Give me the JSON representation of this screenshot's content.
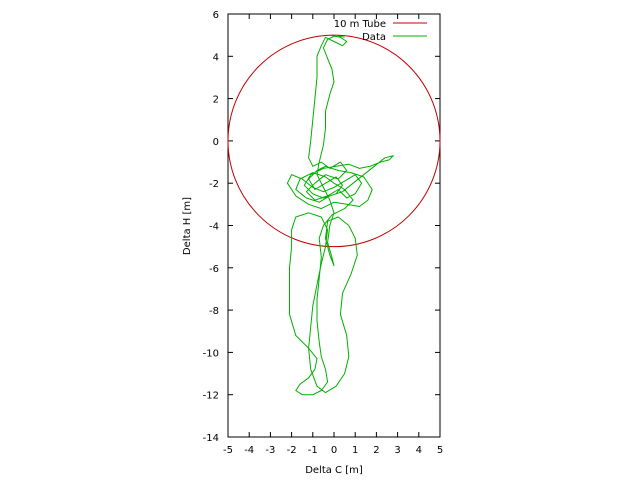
{
  "chart_data": {
    "type": "line",
    "title": "",
    "xlabel": "Delta C [m]",
    "ylabel": "Delta H [m]",
    "xlim": [
      -5,
      5
    ],
    "ylim": [
      -14,
      6
    ],
    "x_ticks": [
      "-5",
      "-4",
      "-3",
      "-2",
      "-1",
      "0",
      "1",
      "2",
      "3",
      "4",
      "5"
    ],
    "y_ticks": [
      "6",
      "4",
      "2",
      "0",
      "-2",
      "-4",
      "-6",
      "-8",
      "-10",
      "-12",
      "-14"
    ],
    "grid": false,
    "legend": {
      "placement": "top-right"
    },
    "series": [
      {
        "name": "10 m Tube",
        "color": "#c00000",
        "kind": "circle",
        "center": [
          0,
          0
        ],
        "radius": 5
      },
      {
        "name": "Data",
        "color": "#00b000",
        "kind": "path",
        "points": [
          [
            -0.2,
            5.0
          ],
          [
            0.3,
            4.9
          ],
          [
            0.6,
            4.7
          ],
          [
            0.4,
            4.5
          ],
          [
            0.0,
            4.7
          ],
          [
            -0.4,
            4.9
          ],
          [
            -0.6,
            4.5
          ],
          [
            -0.8,
            4.0
          ],
          [
            -0.8,
            3.0
          ],
          [
            -0.9,
            2.0
          ],
          [
            -1.0,
            1.0
          ],
          [
            -1.1,
            0.0
          ],
          [
            -1.2,
            -0.8
          ],
          [
            -1.0,
            -1.2
          ],
          [
            -0.6,
            -1.0
          ],
          [
            -0.2,
            -1.3
          ],
          [
            0.3,
            -1.0
          ],
          [
            0.6,
            -1.4
          ],
          [
            0.2,
            -1.8
          ],
          [
            -0.4,
            -1.6
          ],
          [
            -0.9,
            -2.0
          ],
          [
            -1.3,
            -2.4
          ],
          [
            -0.9,
            -2.8
          ],
          [
            -0.3,
            -2.6
          ],
          [
            0.2,
            -2.3
          ],
          [
            0.6,
            -2.7
          ],
          [
            1.0,
            -2.5
          ],
          [
            1.3,
            -2.0
          ],
          [
            1.0,
            -1.6
          ],
          [
            0.5,
            -1.9
          ],
          [
            0.0,
            -2.2
          ],
          [
            -0.5,
            -2.4
          ],
          [
            -1.0,
            -2.2
          ],
          [
            -1.5,
            -1.8
          ],
          [
            -2.0,
            -1.6
          ],
          [
            -2.2,
            -2.0
          ],
          [
            -1.8,
            -2.6
          ],
          [
            -1.2,
            -3.0
          ],
          [
            -0.6,
            -3.2
          ],
          [
            0.0,
            -2.9
          ],
          [
            0.6,
            -3.0
          ],
          [
            1.2,
            -3.1
          ],
          [
            1.6,
            -2.8
          ],
          [
            1.8,
            -2.3
          ],
          [
            1.4,
            -1.7
          ],
          [
            0.8,
            -1.5
          ],
          [
            0.2,
            -1.4
          ],
          [
            -0.4,
            -1.2
          ],
          [
            -0.8,
            -1.4
          ],
          [
            -1.2,
            -1.8
          ],
          [
            -0.9,
            -2.3
          ],
          [
            -0.4,
            -2.0
          ],
          [
            0.1,
            -1.7
          ],
          [
            0.4,
            -2.1
          ],
          [
            0.1,
            -2.5
          ],
          [
            -0.5,
            -2.7
          ],
          [
            -1.0,
            -2.5
          ],
          [
            -1.4,
            -2.1
          ],
          [
            -1.1,
            -1.6
          ],
          [
            -0.5,
            -1.3
          ],
          [
            0.1,
            -1.2
          ],
          [
            0.7,
            -1.1
          ],
          [
            1.2,
            -1.3
          ],
          [
            1.7,
            -1.2
          ],
          [
            2.2,
            -1.0
          ],
          [
            2.6,
            -0.9
          ],
          [
            2.8,
            -0.7
          ],
          [
            2.4,
            -0.8
          ],
          [
            1.9,
            -1.2
          ],
          [
            1.4,
            -1.6
          ],
          [
            0.9,
            -2.0
          ],
          [
            0.4,
            -2.4
          ],
          [
            -0.2,
            -2.6
          ],
          [
            -0.7,
            -2.9
          ],
          [
            -1.3,
            -2.7
          ],
          [
            -1.8,
            -2.3
          ],
          [
            -1.6,
            -1.8
          ],
          [
            -1.0,
            -1.5
          ],
          [
            -0.4,
            -1.7
          ],
          [
            0.0,
            -2.0
          ],
          [
            0.5,
            -2.3
          ],
          [
            0.9,
            -2.8
          ],
          [
            0.5,
            -3.2
          ],
          [
            -0.1,
            -3.5
          ],
          [
            -0.5,
            -4.0
          ],
          [
            -0.7,
            -4.6
          ],
          [
            -0.6,
            -5.5
          ],
          [
            -0.7,
            -6.5
          ],
          [
            -0.8,
            -7.5
          ],
          [
            -0.8,
            -8.5
          ],
          [
            -0.7,
            -9.5
          ],
          [
            -0.6,
            -10.2
          ],
          [
            -0.4,
            -10.8
          ],
          [
            -0.3,
            -11.4
          ],
          [
            -0.6,
            -11.8
          ],
          [
            -1.0,
            -12.0
          ],
          [
            -1.5,
            -12.0
          ],
          [
            -1.8,
            -11.8
          ],
          [
            -1.6,
            -11.5
          ],
          [
            -1.2,
            -11.2
          ],
          [
            -0.9,
            -10.8
          ],
          [
            -0.8,
            -10.3
          ],
          [
            -1.2,
            -9.8
          ],
          [
            -1.8,
            -9.2
          ],
          [
            -2.1,
            -8.2
          ],
          [
            -2.1,
            -7.0
          ],
          [
            -2.1,
            -6.0
          ],
          [
            -2.0,
            -5.0
          ],
          [
            -2.0,
            -4.2
          ],
          [
            -1.8,
            -3.6
          ],
          [
            -1.2,
            -3.4
          ],
          [
            -0.6,
            -3.6
          ],
          [
            -0.3,
            -4.2
          ],
          [
            -0.4,
            -5.0
          ],
          [
            -0.6,
            -5.8
          ],
          [
            -0.8,
            -6.8
          ],
          [
            -1.0,
            -7.8
          ],
          [
            -1.1,
            -8.8
          ],
          [
            -1.2,
            -9.8
          ],
          [
            -1.1,
            -10.8
          ],
          [
            -0.8,
            -11.6
          ],
          [
            -0.4,
            -11.9
          ],
          [
            0.1,
            -11.6
          ],
          [
            0.5,
            -11.0
          ],
          [
            0.7,
            -10.2
          ],
          [
            0.6,
            -9.2
          ],
          [
            0.3,
            -8.2
          ],
          [
            0.4,
            -7.2
          ],
          [
            0.8,
            -6.3
          ],
          [
            1.1,
            -5.4
          ],
          [
            1.0,
            -4.6
          ],
          [
            0.7,
            -4.0
          ],
          [
            0.2,
            -3.6
          ],
          [
            -0.3,
            -3.8
          ],
          [
            -0.4,
            -4.6
          ],
          [
            -0.2,
            -5.4
          ],
          [
            0.0,
            -5.9
          ],
          [
            -0.1,
            -5.5
          ],
          [
            -0.3,
            -4.8
          ],
          [
            -0.2,
            -4.0
          ],
          [
            0.0,
            -3.4
          ],
          [
            -0.2,
            -2.8
          ],
          [
            -0.5,
            -2.2
          ],
          [
            -0.8,
            -1.6
          ],
          [
            -0.7,
            -1.0
          ],
          [
            -0.5,
            -0.2
          ],
          [
            -0.4,
            0.6
          ],
          [
            -0.4,
            1.4
          ],
          [
            -0.2,
            2.2
          ],
          [
            0.0,
            2.8
          ],
          [
            -0.1,
            3.4
          ],
          [
            -0.3,
            3.9
          ],
          [
            -0.5,
            4.4
          ],
          [
            -0.3,
            4.8
          ],
          [
            0.1,
            5.0
          ],
          [
            0.5,
            4.9
          ]
        ]
      }
    ]
  }
}
